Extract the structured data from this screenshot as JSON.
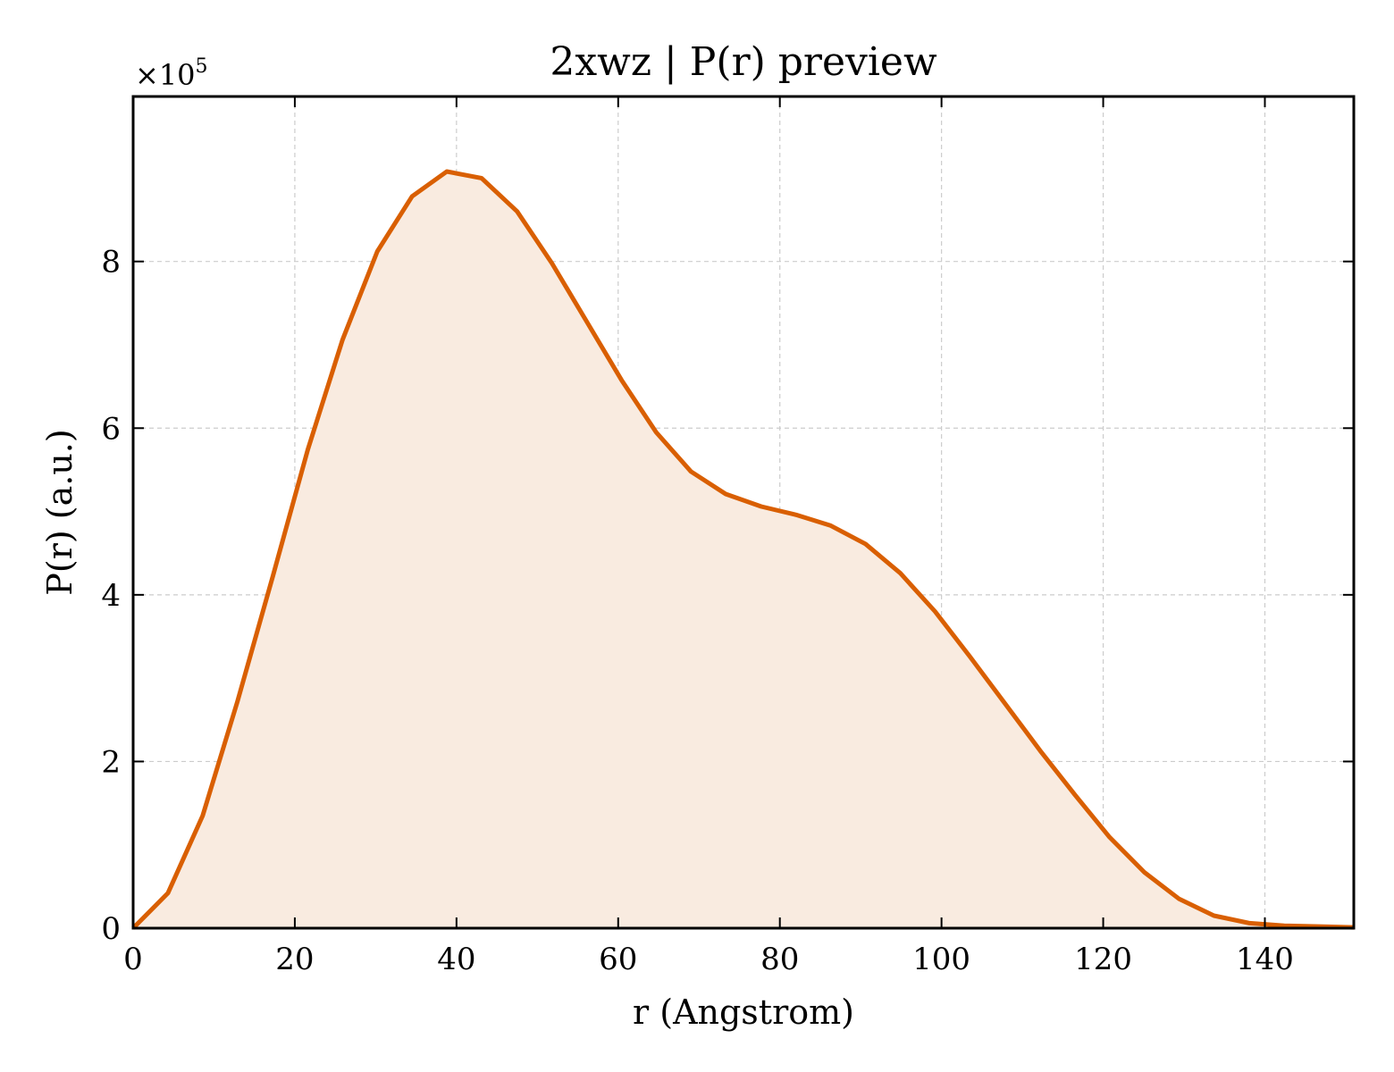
{
  "chart_data": {
    "type": "area",
    "title": "2xwz | P(r) preview",
    "xlabel": "r (Angstrom)",
    "ylabel": "P(r) (a.u.)",
    "y_scale_label": "×10",
    "y_scale_exponent": "5",
    "xlim": [
      0,
      151
    ],
    "ylim": [
      0,
      9.98
    ],
    "grid": true,
    "line_color": "#d95f02",
    "fill_color": "#f9ebe0",
    "x_ticks": [
      0,
      20,
      40,
      60,
      80,
      100,
      120,
      140
    ],
    "x_tick_labels": [
      "0",
      "20",
      "40",
      "60",
      "80",
      "100",
      "120",
      "140"
    ],
    "y_ticks": [
      0,
      2,
      4,
      6,
      8
    ],
    "y_tick_labels": [
      "0",
      "2",
      "4",
      "6",
      "8"
    ],
    "series": [
      {
        "x": [
          0,
          4.3,
          8.6,
          12.9,
          17.3,
          21.6,
          25.9,
          30.2,
          34.5,
          38.8,
          43.1,
          47.5,
          51.8,
          56.1,
          60.4,
          64.7,
          69.0,
          73.3,
          77.7,
          82.0,
          86.3,
          90.6,
          94.9,
          99.2,
          103.5,
          107.9,
          112.2,
          116.5,
          120.8,
          125.1,
          129.4,
          133.7,
          138.1,
          142.4,
          146.7,
          151.0
        ],
        "values": [
          0.0,
          0.42,
          1.35,
          2.72,
          4.23,
          5.74,
          7.06,
          8.12,
          8.78,
          9.08,
          9.0,
          8.6,
          7.98,
          7.28,
          6.58,
          5.95,
          5.48,
          5.21,
          5.06,
          4.96,
          4.83,
          4.61,
          4.26,
          3.8,
          3.26,
          2.69,
          2.13,
          1.6,
          1.09,
          0.67,
          0.35,
          0.15,
          0.06,
          0.03,
          0.02,
          0.01
        ]
      }
    ]
  }
}
